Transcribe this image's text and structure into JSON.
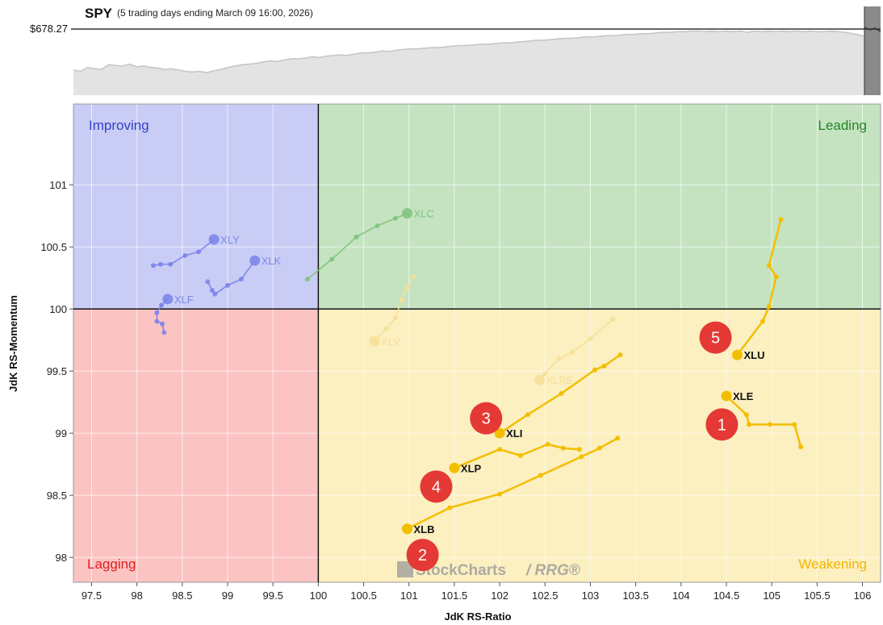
{
  "header": {
    "symbol": "SPY",
    "subtitle": "(5 trading days ending March 09 16:00, 2026)",
    "price": "$678.27"
  },
  "watermark": {
    "brand": "StockCharts",
    "product": "/ RRG®"
  },
  "chart_data": {
    "type": "scatter",
    "xlabel": "JdK RS-Ratio",
    "ylabel": "JdK RS-Momentum",
    "xlim": [
      97.3,
      106.2
    ],
    "ylim": [
      97.8,
      101.65
    ],
    "x_ticks": [
      "97.5",
      "98",
      "98.5",
      "99",
      "99.5",
      "100",
      "100.5",
      "101",
      "101.5",
      "102",
      "102.5",
      "103",
      "103.5",
      "104",
      "104.5",
      "105",
      "105.5",
      "106"
    ],
    "y_ticks": [
      "98",
      "98.5",
      "99",
      "99.5",
      "100",
      "100.5",
      "101"
    ],
    "center": [
      100,
      100
    ],
    "quadrants": [
      {
        "name": "Improving",
        "color": "#c9cdf5",
        "label_color": "#3340c8"
      },
      {
        "name": "Leading",
        "color": "#c5e3c1",
        "label_color": "#22862a"
      },
      {
        "name": "Lagging",
        "color": "#fcc3c3",
        "label_color": "#e02020"
      },
      {
        "name": "Weakening",
        "color": "#fcefc0",
        "label_color": "#f0b800"
      }
    ],
    "highlight_color": "#f2bf00",
    "series": [
      {
        "name": "XLU",
        "highlight": true,
        "points": [
          [
            105.1,
            100.72
          ],
          [
            104.97,
            100.35
          ],
          [
            105.05,
            100.26
          ],
          [
            104.97,
            100.02
          ],
          [
            104.9,
            99.9
          ],
          [
            104.62,
            99.63
          ]
        ]
      },
      {
        "name": "XLE",
        "highlight": true,
        "points": [
          [
            105.32,
            98.89
          ],
          [
            105.25,
            99.07
          ],
          [
            104.98,
            99.07
          ],
          [
            104.75,
            99.07
          ],
          [
            104.72,
            99.15
          ],
          [
            104.5,
            99.3
          ]
        ]
      },
      {
        "name": "XLI",
        "highlight": true,
        "points": [
          [
            103.33,
            99.63
          ],
          [
            103.15,
            99.54
          ],
          [
            103.05,
            99.51
          ],
          [
            102.68,
            99.32
          ],
          [
            102.31,
            99.15
          ],
          [
            102.0,
            99.0
          ]
        ]
      },
      {
        "name": "XLP",
        "highlight": true,
        "points": [
          [
            102.88,
            98.87
          ],
          [
            102.7,
            98.88
          ],
          [
            102.53,
            98.91
          ],
          [
            102.23,
            98.82
          ],
          [
            102.0,
            98.87
          ],
          [
            101.5,
            98.72
          ]
        ]
      },
      {
        "name": "XLB",
        "highlight": true,
        "points": [
          [
            103.3,
            98.96
          ],
          [
            103.1,
            98.88
          ],
          [
            102.9,
            98.81
          ],
          [
            102.45,
            98.66
          ],
          [
            102.0,
            98.51
          ],
          [
            101.45,
            98.4
          ],
          [
            100.98,
            98.23
          ]
        ]
      },
      {
        "name": "XLC",
        "highlight": false,
        "color": "#7cc37a",
        "points": [
          [
            99.88,
            100.24
          ],
          [
            100.15,
            100.4
          ],
          [
            100.42,
            100.58
          ],
          [
            100.65,
            100.67
          ],
          [
            100.85,
            100.73
          ],
          [
            100.98,
            100.77
          ]
        ]
      },
      {
        "name": "XLY",
        "highlight": false,
        "color": "#7a83ea",
        "points": [
          [
            98.18,
            100.35
          ],
          [
            98.26,
            100.36
          ],
          [
            98.37,
            100.36
          ],
          [
            98.53,
            100.43
          ],
          [
            98.68,
            100.46
          ],
          [
            98.85,
            100.56
          ]
        ]
      },
      {
        "name": "XLK",
        "highlight": false,
        "color": "#7a83ea",
        "points": [
          [
            98.78,
            100.22
          ],
          [
            98.83,
            100.15
          ],
          [
            98.86,
            100.12
          ],
          [
            99.0,
            100.19
          ],
          [
            99.15,
            100.24
          ],
          [
            99.3,
            100.39
          ]
        ]
      },
      {
        "name": "XLF",
        "highlight": false,
        "color": "#7a83ea",
        "points": [
          [
            98.3,
            99.81
          ],
          [
            98.28,
            99.88
          ],
          [
            98.22,
            99.9
          ],
          [
            98.22,
            99.97
          ],
          [
            98.27,
            100.03
          ],
          [
            98.34,
            100.08
          ]
        ]
      },
      {
        "name": "XLV",
        "highlight": false,
        "color": "#f5df95",
        "points": [
          [
            101.05,
            100.26
          ],
          [
            100.98,
            100.17
          ],
          [
            100.92,
            100.07
          ],
          [
            100.85,
            99.93
          ],
          [
            100.75,
            99.84
          ],
          [
            100.62,
            99.74
          ]
        ]
      },
      {
        "name": "XLRE",
        "highlight": false,
        "color": "#f5df95",
        "points": [
          [
            103.25,
            99.92
          ],
          [
            103.0,
            99.76
          ],
          [
            102.8,
            99.65
          ],
          [
            102.65,
            99.6
          ],
          [
            102.5,
            99.48
          ],
          [
            102.44,
            99.43
          ]
        ]
      }
    ],
    "markers": [
      {
        "label": "1",
        "x": 104.45,
        "y": 99.07
      },
      {
        "label": "2",
        "x": 101.15,
        "y": 98.02
      },
      {
        "label": "3",
        "x": 101.85,
        "y": 99.12
      },
      {
        "label": "4",
        "x": 101.3,
        "y": 98.57
      },
      {
        "label": "5",
        "x": 104.38,
        "y": 99.77
      }
    ],
    "spy_series": [
      0.38,
      0.36,
      0.42,
      0.4,
      0.39,
      0.46,
      0.45,
      0.44,
      0.47,
      0.43,
      0.44,
      0.42,
      0.41,
      0.39,
      0.4,
      0.38,
      0.36,
      0.35,
      0.36,
      0.34,
      0.37,
      0.39,
      0.42,
      0.44,
      0.46,
      0.47,
      0.48,
      0.5,
      0.52,
      0.51,
      0.53,
      0.55,
      0.55,
      0.56,
      0.58,
      0.57,
      0.59,
      0.6,
      0.61,
      0.6,
      0.62,
      0.64,
      0.64,
      0.65,
      0.67,
      0.66,
      0.68,
      0.69,
      0.7,
      0.7,
      0.71,
      0.72,
      0.72,
      0.73,
      0.74,
      0.75,
      0.75,
      0.76,
      0.77,
      0.77,
      0.78,
      0.79,
      0.79,
      0.8,
      0.81,
      0.82,
      0.83,
      0.83,
      0.84,
      0.85,
      0.86,
      0.86,
      0.87,
      0.88,
      0.88,
      0.89,
      0.9,
      0.9,
      0.91,
      0.92,
      0.92,
      0.93,
      0.93,
      0.94,
      0.95,
      0.95,
      0.96,
      0.96,
      0.97,
      0.97,
      0.96,
      0.97,
      0.96,
      0.97,
      0.96,
      0.97,
      0.95,
      0.97,
      0.96,
      0.97,
      0.96,
      0.97,
      0.96,
      0.97,
      0.96,
      0.97,
      0.96,
      0.96,
      0.97,
      0.96,
      0.95,
      0.93,
      0.91,
      0.88,
      0.85,
      0.83
    ]
  }
}
